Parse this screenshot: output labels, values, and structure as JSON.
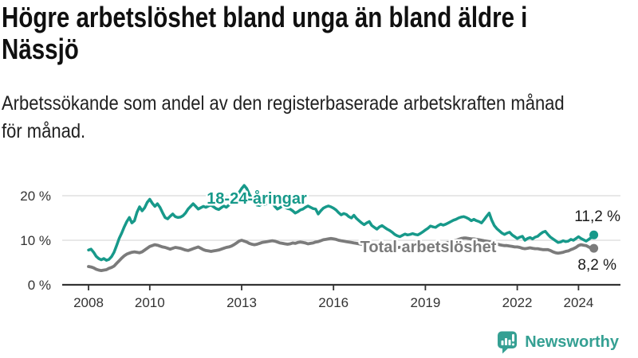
{
  "header": {
    "title_lines": [
      "Högre arbetslöshet bland unga än bland äldre i",
      "Nässjö"
    ],
    "subtitle_lines": [
      "Arbetssökande som andel av den registerbaserade arbetskraften månad",
      "för månad."
    ]
  },
  "chart_data": {
    "type": "line",
    "title": "Högre arbetslöshet bland unga än bland äldre i Nässjö",
    "subtitle": "Arbetssökande som andel av den registerbaserade arbetskraften månad för månad.",
    "x_start_year": 2008,
    "points_per_year": 12,
    "x_tick_years": [
      2008,
      2010,
      2013,
      2016,
      2019,
      2022,
      2024
    ],
    "y_ticks": [
      {
        "value": 0,
        "label": "0 %"
      },
      {
        "value": 10,
        "label": "10 %"
      },
      {
        "value": 20,
        "label": "20 %"
      }
    ],
    "ylim": [
      0,
      24
    ],
    "grid": "horizontal",
    "legend_position": "inline-labels",
    "axis_color": "#333333",
    "grid_color": "#d9d9d9",
    "series": [
      {
        "name": "18-24-åringar",
        "color": "#17998a",
        "end_label": "11,2 %",
        "end_value": 11.2,
        "values": [
          7.8,
          8.0,
          7.3,
          6.4,
          5.9,
          5.6,
          5.9,
          5.5,
          5.7,
          6.3,
          7.3,
          8.8,
          10.4,
          11.6,
          13.0,
          14.2,
          15.1,
          13.9,
          14.4,
          16.3,
          17.5,
          16.6,
          17.3,
          18.5,
          19.2,
          18.3,
          17.6,
          18.2,
          17.4,
          16.2,
          15.1,
          14.8,
          15.4,
          15.9,
          15.3,
          15.1,
          15.2,
          15.5,
          16.1,
          17.0,
          17.6,
          18.2,
          17.6,
          17.0,
          17.3,
          17.6,
          17.4,
          17.7,
          17.9,
          17.5,
          17.1,
          16.9,
          17.3,
          17.7,
          17.4,
          17.9,
          18.3,
          18.8,
          19.6,
          20.7,
          21.6,
          22.3,
          21.6,
          20.3,
          19.3,
          18.9,
          17.9,
          17.8,
          18.2,
          18.0,
          18.3,
          18.6,
          18.5,
          17.6,
          17.0,
          17.3,
          17.7,
          17.4,
          17.1,
          17.0,
          16.6,
          16.1,
          16.4,
          16.8,
          17.0,
          17.4,
          17.7,
          17.4,
          17.1,
          17.0,
          15.9,
          16.6,
          17.2,
          17.5,
          17.7,
          17.5,
          17.2,
          16.8,
          16.2,
          15.7,
          16.0,
          15.8,
          15.3,
          15.0,
          15.6,
          14.9,
          14.4,
          13.9,
          13.5,
          13.9,
          14.2,
          13.3,
          12.9,
          12.5,
          13.0,
          13.3,
          12.9,
          12.5,
          12.2,
          11.8,
          11.3,
          11.0,
          10.8,
          11.1,
          11.4,
          11.2,
          11.3,
          11.5,
          11.3,
          11.2,
          11.5,
          11.9,
          12.3,
          12.7,
          13.2,
          13.0,
          12.9,
          13.3,
          13.6,
          13.4,
          13.6,
          13.9,
          14.2,
          14.5,
          14.7,
          15.0,
          15.2,
          15.3,
          15.1,
          14.8,
          14.4,
          14.7,
          14.4,
          14.2,
          13.9,
          14.6,
          15.4,
          16.1,
          14.5,
          13.3,
          12.6,
          12.1,
          11.6,
          11.3,
          11.6,
          11.8,
          11.2,
          10.8,
          10.4,
          10.7,
          10.9,
          10.0,
          10.4,
          10.6,
          10.3,
          10.7,
          10.9,
          11.4,
          11.8,
          12.0,
          11.3,
          10.7,
          10.3,
          9.9,
          9.5,
          9.6,
          9.9,
          9.7,
          9.8,
          10.2,
          10.0,
          10.4,
          10.8,
          10.4,
          10.1,
          9.8,
          10.2,
          10.6,
          11.2
        ]
      },
      {
        "name": "Total arbetslöshet",
        "color": "#7b7b7b",
        "end_label": "8,2 %",
        "end_value": 8.2,
        "values": [
          4.1,
          4.0,
          3.8,
          3.5,
          3.3,
          3.2,
          3.3,
          3.4,
          3.7,
          3.9,
          4.2,
          4.8,
          5.4,
          6.0,
          6.5,
          6.9,
          7.1,
          7.3,
          7.4,
          7.3,
          7.2,
          7.4,
          7.8,
          8.2,
          8.6,
          8.8,
          9.0,
          8.9,
          8.7,
          8.5,
          8.4,
          8.2,
          8.0,
          8.2,
          8.4,
          8.3,
          8.2,
          8.0,
          7.8,
          7.7,
          7.9,
          8.1,
          8.3,
          8.5,
          8.2,
          7.9,
          7.7,
          7.6,
          7.5,
          7.6,
          7.7,
          7.8,
          8.0,
          8.2,
          8.4,
          8.5,
          8.7,
          9.0,
          9.4,
          9.8,
          10.0,
          9.8,
          9.6,
          9.3,
          9.1,
          9.0,
          9.1,
          9.3,
          9.5,
          9.6,
          9.7,
          9.8,
          9.9,
          9.8,
          9.6,
          9.4,
          9.3,
          9.2,
          9.1,
          9.2,
          9.4,
          9.3,
          9.5,
          9.6,
          9.5,
          9.4,
          9.2,
          9.3,
          9.4,
          9.6,
          9.7,
          9.9,
          10.1,
          10.2,
          10.3,
          10.4,
          10.3,
          10.2,
          10.0,
          9.9,
          9.8,
          9.7,
          9.6,
          9.5,
          9.4,
          9.3,
          9.2,
          9.1,
          9.0,
          8.9,
          8.9,
          8.8,
          8.7,
          8.7,
          8.6,
          8.6,
          8.5,
          8.5,
          8.4,
          8.5,
          8.5,
          8.4,
          8.4,
          8.5,
          8.6,
          8.6,
          8.7,
          8.7,
          8.6,
          8.6,
          8.7,
          8.8,
          8.8,
          8.9,
          9.0,
          9.0,
          9.1,
          9.1,
          9.2,
          9.3,
          9.4,
          9.5,
          9.6,
          9.8,
          10.0,
          10.2,
          10.4,
          10.5,
          10.5,
          10.4,
          10.3,
          10.3,
          10.2,
          10.1,
          10.0,
          9.9,
          9.8,
          9.7,
          9.5,
          9.4,
          9.2,
          9.0,
          8.9,
          8.8,
          8.8,
          8.7,
          8.6,
          8.5,
          8.5,
          8.4,
          8.2,
          8.1,
          8.2,
          8.3,
          8.2,
          8.1,
          8.1,
          8.0,
          7.9,
          7.9,
          7.9,
          7.7,
          7.4,
          7.2,
          7.1,
          7.2,
          7.3,
          7.5,
          7.6,
          7.9,
          8.1,
          8.4,
          8.8,
          9.0,
          8.9,
          8.8,
          8.5,
          8.2,
          8.2
        ]
      }
    ]
  },
  "footer": {
    "brand": "Newsworthy",
    "brand_color": "#35a093"
  }
}
